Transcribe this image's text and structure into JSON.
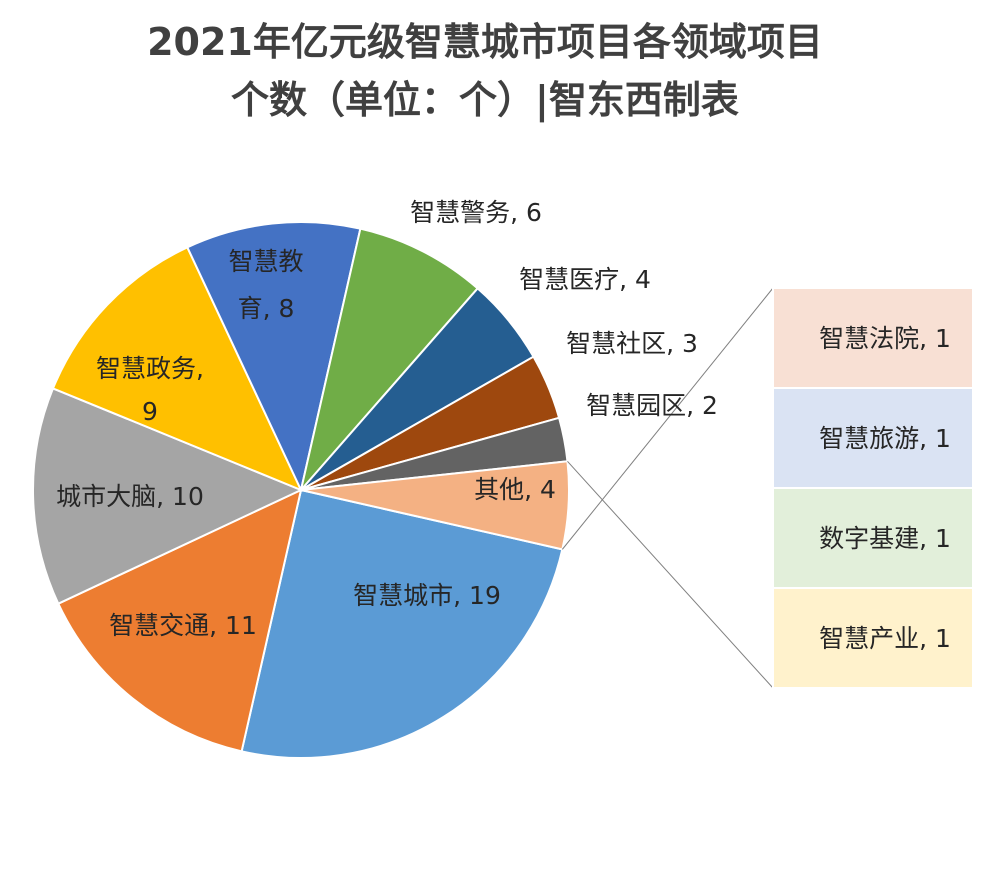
{
  "chart_data": {
    "type": "pie",
    "title": "2021年亿元级智慧城市项目各领域项目个数（单位：个）|智东西制表",
    "title_lines": [
      "2021年亿元级智慧城市项目各领域项目",
      "个数（单位：个）|智东西制表"
    ],
    "slices": [
      {
        "label": "智慧城市",
        "value": 19,
        "color": "#5B9BD5",
        "data_label": "智慧城市, 19"
      },
      {
        "label": "智慧交通",
        "value": 11,
        "color": "#ED7D31",
        "data_label": "智慧交通, 11"
      },
      {
        "label": "城市大脑",
        "value": 10,
        "color": "#A5A5A5",
        "data_label": "城市大脑, 10"
      },
      {
        "label": "智慧政务",
        "value": 9,
        "color": "#FFC000",
        "data_label_lines": [
          "智慧政务,",
          "9"
        ]
      },
      {
        "label": "智慧教育",
        "value": 8,
        "color": "#4472C4",
        "data_label_lines": [
          "智慧教",
          "育, 8"
        ]
      },
      {
        "label": "智慧警务",
        "value": 6,
        "color": "#70AD47",
        "data_label": "智慧警务, 6"
      },
      {
        "label": "智慧医疗",
        "value": 4,
        "color": "#255E91",
        "data_label": "智慧医疗, 4"
      },
      {
        "label": "智慧社区",
        "value": 3,
        "color": "#9E480E",
        "data_label": "智慧社区, 3"
      },
      {
        "label": "智慧园区",
        "value": 2,
        "color": "#636363",
        "data_label": "智慧园区, 2"
      },
      {
        "label": "其他",
        "value": 4,
        "color": "#F4B183",
        "data_label": "其他, 4"
      }
    ],
    "breakdown": {
      "parent": "其他",
      "items": [
        {
          "label": "智慧法院",
          "value": 1,
          "color": "#F8E0D4",
          "data_label": "智慧法院, 1"
        },
        {
          "label": "智慧旅游",
          "value": 1,
          "color": "#DAE3F3",
          "data_label": "智慧旅游, 1"
        },
        {
          "label": "数字基建",
          "value": 1,
          "color": "#E2EFDA",
          "data_label": "数字基建, 1"
        },
        {
          "label": "智慧产业",
          "value": 1,
          "color": "#FFF2CC",
          "data_label": "智慧产业, 1"
        }
      ]
    },
    "legend": "none",
    "grid": false
  }
}
